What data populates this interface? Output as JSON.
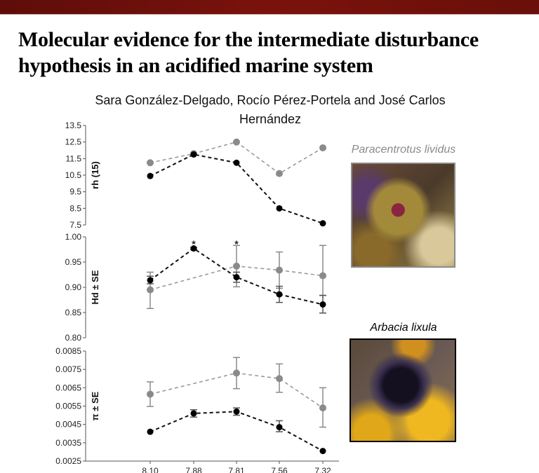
{
  "slide": {
    "title": "Molecular evidence for the intermediate disturbance hypothesis in an acidified marine system",
    "authors": "Sara González-Delgado, Rocío Pérez-Portela and José Carlos Hernández",
    "header_color": "#6a0f0a"
  },
  "photos": [
    {
      "label": "Paracentrotus lividus",
      "label_color": "#8a8a8a"
    },
    {
      "label": "Arbacia lixula",
      "label_color": "#000000"
    }
  ],
  "chart_data": [
    {
      "type": "line",
      "ylabel": "rh (15)",
      "categories": [
        "8.10",
        "7.88",
        "7.81",
        "7.56",
        "7.32"
      ],
      "ylim": [
        7.5,
        13.5
      ],
      "yticks": [
        "13.5",
        "12.5",
        "11.5",
        "10.5",
        "9.5",
        "8.5",
        "7.5"
      ],
      "series": [
        {
          "name": "Paracentrotus lividus",
          "color": "#8a8a8a",
          "values": [
            11.25,
            11.8,
            12.5,
            10.6,
            12.15
          ]
        },
        {
          "name": "Arbacia lixula",
          "color": "#000000",
          "values": [
            10.45,
            11.75,
            11.25,
            8.5,
            7.6
          ]
        }
      ]
    },
    {
      "type": "line",
      "ylabel": "Hd ± SE",
      "categories": [
        "8.10",
        "7.88",
        "7.81",
        "7.56",
        "7.32"
      ],
      "ylim": [
        0.8,
        1.0
      ],
      "yticks": [
        "1.00",
        "0.95",
        "0.90",
        "0.85",
        "0.80"
      ],
      "annotations": [
        {
          "category": "7.88",
          "text": "*"
        },
        {
          "category": "7.81",
          "text": "*"
        }
      ],
      "series": [
        {
          "name": "Paracentrotus lividus",
          "color": "#8a8a8a",
          "values": [
            0.895,
            null,
            0.942,
            0.934,
            0.923
          ],
          "err_low": [
            0.858,
            null,
            0.901,
            0.898,
            0.884
          ],
          "err_high": [
            0.93,
            null,
            0.983,
            0.97,
            0.983
          ]
        },
        {
          "name": "Arbacia lixula",
          "color": "#000000",
          "values": [
            0.914,
            0.977,
            0.92,
            0.886,
            0.866
          ],
          "err_low": [
            0.907,
            0.975,
            0.91,
            0.87,
            0.849
          ],
          "err_high": [
            0.922,
            0.979,
            0.93,
            0.902,
            0.884
          ]
        }
      ]
    },
    {
      "type": "line",
      "ylabel": "π ± SE",
      "categories": [
        "8.10",
        "7.88",
        "7.81",
        "7.56",
        "7.32"
      ],
      "ylim": [
        0.0025,
        0.0085
      ],
      "yticks": [
        "0.0085",
        "0.0075",
        "0.0065",
        "0.0055",
        "0.0045",
        "0.0035",
        "0.0025"
      ],
      "series": [
        {
          "name": "Paracentrotus lividus",
          "color": "#8a8a8a",
          "values": [
            0.00615,
            null,
            0.0073,
            0.007,
            0.0054
          ],
          "err_low": [
            0.00548,
            null,
            0.00645,
            0.00625,
            0.00435
          ],
          "err_high": [
            0.00682,
            null,
            0.00815,
            0.0078,
            0.0065
          ]
        },
        {
          "name": "Arbacia lixula",
          "color": "#000000",
          "values": [
            0.0041,
            0.0051,
            0.0052,
            0.00435,
            0.00305
          ],
          "err_low": [
            0.0041,
            0.0049,
            0.005,
            0.0041,
            0.00305
          ],
          "err_high": [
            0.0041,
            0.0053,
            0.0054,
            0.0047,
            0.00305
          ]
        }
      ]
    }
  ]
}
